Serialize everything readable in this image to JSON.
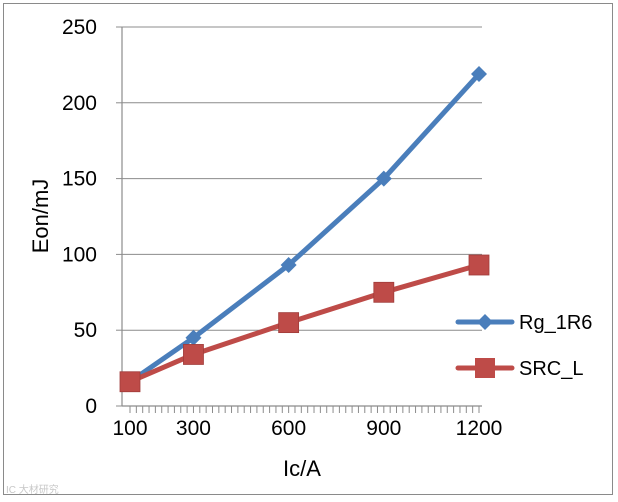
{
  "chart_data": {
    "type": "line",
    "title": "",
    "xlabel": "Ic/A",
    "ylabel": "Eon/mJ",
    "x": [
      100,
      300,
      600,
      900,
      1200
    ],
    "x_tick_labels": [
      "100",
      "300",
      "600",
      "900",
      "1200"
    ],
    "ylim": [
      0,
      250
    ],
    "y_ticks": [
      0,
      50,
      100,
      150,
      200,
      250
    ],
    "grid": "horizontal",
    "legend_position": "right",
    "series": [
      {
        "name": "Rg_1R6",
        "values": [
          16,
          45,
          93,
          150,
          219
        ],
        "color": "#4a7ebb",
        "marker": "diamond"
      },
      {
        "name": "SRC_L",
        "values": [
          16,
          34,
          55,
          75,
          93
        ],
        "color": "#be4b48",
        "marker": "square"
      }
    ]
  },
  "watermark": "IC 大材研究"
}
